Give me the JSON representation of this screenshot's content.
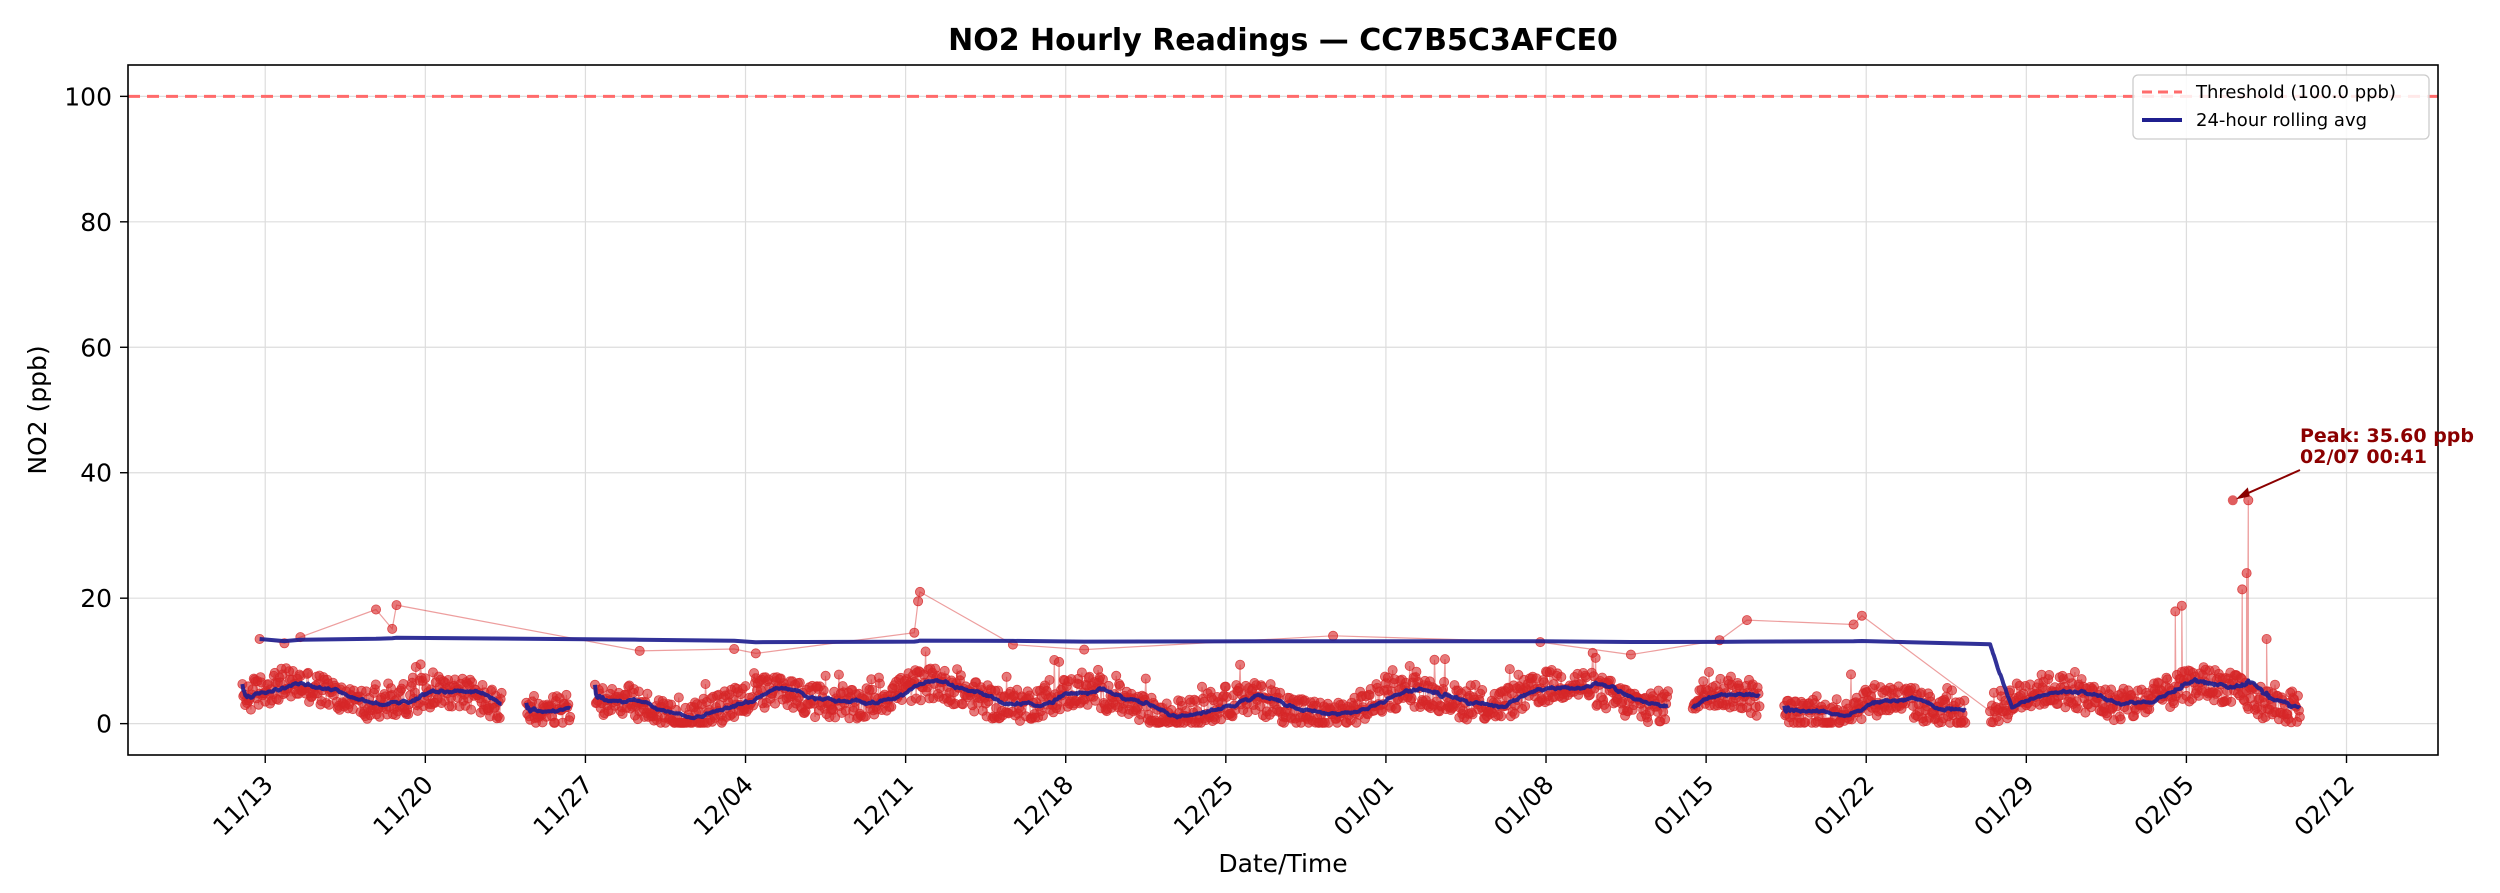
{
  "chart_data": {
    "type": "scatter",
    "title": "NO2 Hourly Readings — CC7B5C3AFCE0",
    "xlabel": "Date/Time",
    "ylabel": "NO2 (ppb)",
    "x_ticks": [
      "11/13",
      "11/20",
      "11/27",
      "12/04",
      "12/11",
      "12/18",
      "12/25",
      "01/01",
      "01/08",
      "01/15",
      "01/22",
      "01/29",
      "02/05",
      "02/12"
    ],
    "xlim": [
      "11/07",
      "02/16"
    ],
    "ylim": [
      -5,
      105
    ],
    "y_ticks": [
      0,
      20,
      40,
      60,
      80,
      100
    ],
    "grid": true,
    "legend_position": "top-right",
    "threshold": {
      "value": 100,
      "label": "Threshold (100.0 ppb)",
      "color": "#ff6b6b"
    },
    "rolling_avg": {
      "label": "24-hour rolling avg",
      "color": "#1f1f8f"
    },
    "point_color": "#d62728",
    "annotation": {
      "line1": "Peak: 35.60 ppb",
      "line2": "02/07 00:41",
      "x": "02/07 00:41",
      "y": 35.6,
      "color": "#8b0000"
    },
    "series": [
      {
        "kind": "hourly readings",
        "points_per_day": 24,
        "start": "11/12",
        "end": "02/09",
        "gaps": [
          [
            "11/23",
            "11/24"
          ],
          [
            "11/26",
            "11/27"
          ],
          [
            "01/13",
            "01/14"
          ],
          [
            "01/17",
            "01/18"
          ],
          [
            "01/26",
            "01/27"
          ]
        ],
        "typical_range": [
          0,
          10
        ],
        "spikes": [
          [
            "11/12",
            13.5
          ],
          [
            "11/13",
            12.8
          ],
          [
            "11/14",
            13.8
          ],
          [
            "11/17",
            18.2
          ],
          [
            "11/18",
            18.9
          ],
          [
            "11/18",
            15.1
          ],
          [
            "11/29",
            11.6
          ],
          [
            "12/03",
            11.9
          ],
          [
            "12/04",
            11.2
          ],
          [
            "12/11",
            21.0
          ],
          [
            "12/11",
            19.5
          ],
          [
            "12/11",
            14.5
          ],
          [
            "12/15",
            12.6
          ],
          [
            "12/18",
            11.8
          ],
          [
            "12/29",
            14.0
          ],
          [
            "01/07",
            13.0
          ],
          [
            "01/11",
            11.0
          ],
          [
            "01/15",
            13.3
          ],
          [
            "01/16",
            16.5
          ],
          [
            "01/21",
            17.2
          ],
          [
            "01/21",
            15.8
          ],
          [
            "02/04",
            18.8
          ],
          [
            "02/04",
            17.9
          ],
          [
            "02/07",
            24.0
          ],
          [
            "02/07",
            21.4
          ],
          [
            "02/07",
            35.6
          ],
          [
            "02/08",
            13.5
          ]
        ]
      }
    ]
  }
}
